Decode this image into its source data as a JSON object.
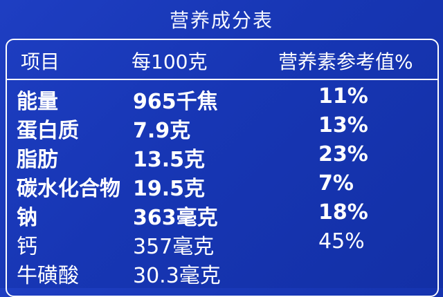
{
  "title": "营养成分表",
  "headers": {
    "item": "项目",
    "per100": "每100克",
    "nrv": "营养素参考值%"
  },
  "rows": [
    {
      "name": "能量",
      "value": "965千焦",
      "nrv": "11%"
    },
    {
      "name": "蛋白质",
      "value": "7.9克",
      "nrv": "13%"
    },
    {
      "name": "脂肪",
      "value": "13.5克",
      "nrv": "23%"
    },
    {
      "name": "碳水化合物",
      "value": "19.5克",
      "nrv": "7%"
    },
    {
      "name": "钠",
      "value": "363毫克",
      "nrv": "18%"
    },
    {
      "name": "钙",
      "value": "357毫克",
      "nrv": "45%"
    },
    {
      "name": "牛磺酸",
      "value": "30.3毫克",
      "nrv": ""
    }
  ]
}
